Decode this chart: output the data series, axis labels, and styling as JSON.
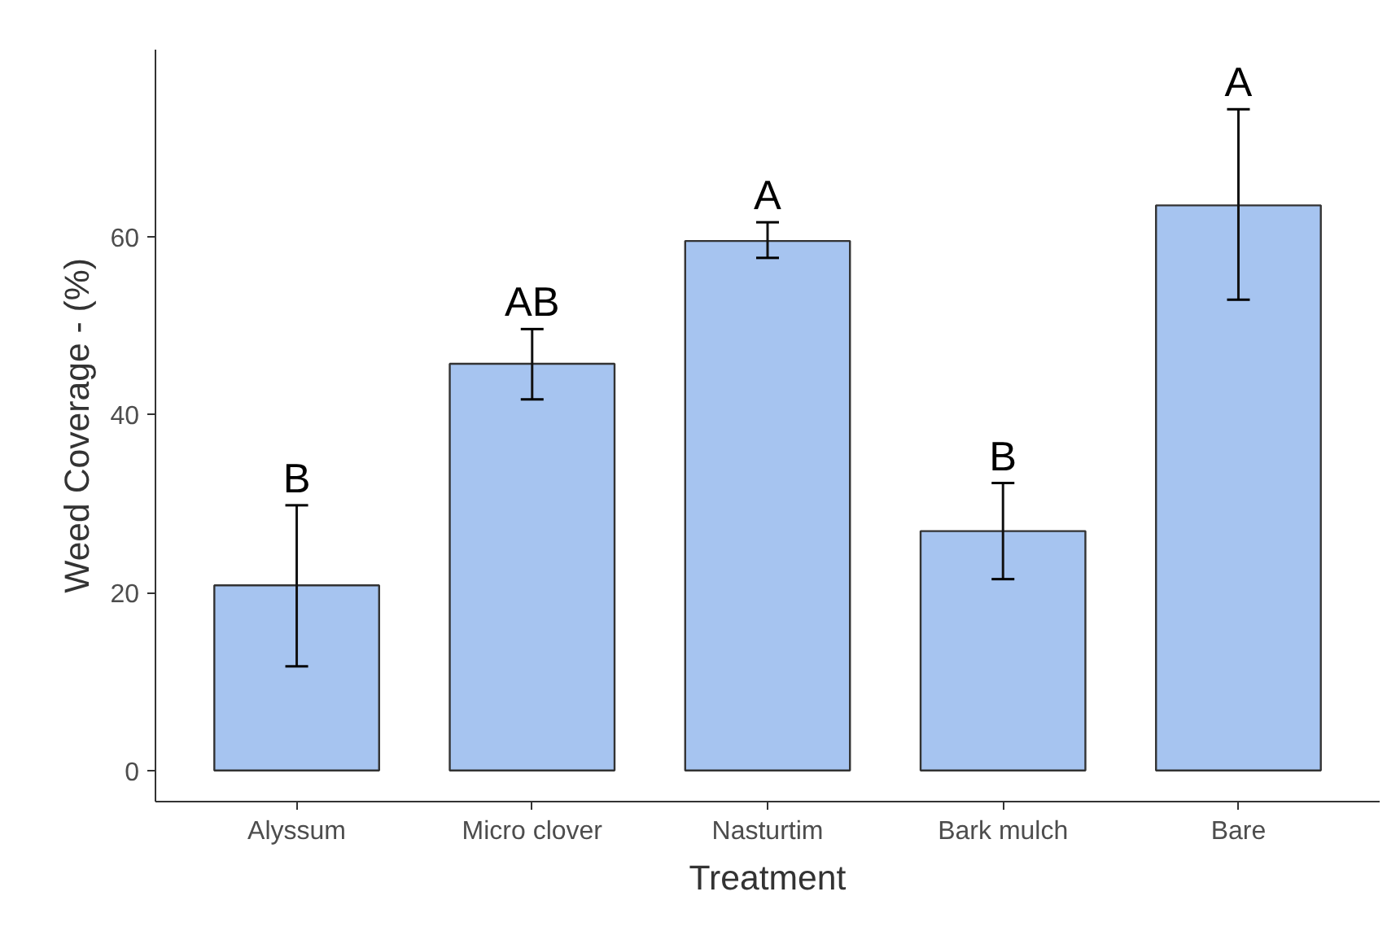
{
  "chart_data": {
    "type": "bar",
    "xlabel": "Treatment",
    "ylabel": "Weed Coverage - (%)",
    "categories": [
      "Alyssum",
      "Micro clover",
      "Nasturtim",
      "Bark mulch",
      "Bare"
    ],
    "values": [
      20.8,
      45.7,
      59.5,
      26.9,
      63.5
    ],
    "errors": [
      [
        11.7,
        29.8
      ],
      [
        41.7,
        49.6
      ],
      [
        57.6,
        61.6
      ],
      [
        21.5,
        32.3
      ],
      [
        52.9,
        74.3
      ]
    ],
    "color": "#a6c4f0",
    "ylim": [
      -3.5,
      81
    ],
    "yticks": [
      0,
      20,
      40,
      60
    ],
    "grid": false,
    "annotations": [
      {
        "text": "B",
        "x": "Alyssum",
        "y": 29.8
      },
      {
        "text": "AB",
        "x": "Micro clover",
        "y": 49.6
      },
      {
        "text": "A",
        "x": "Nasturtim",
        "y": 61.6
      },
      {
        "text": "B",
        "x": "Bark mulch",
        "y": 32.3
      },
      {
        "text": "A",
        "x": "Bare",
        "y": 74.3
      }
    ]
  }
}
